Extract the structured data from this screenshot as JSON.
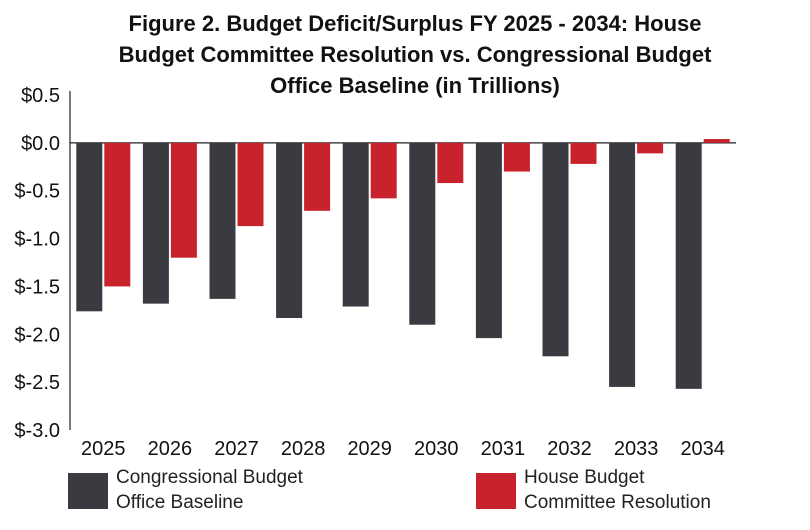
{
  "chart_data": {
    "type": "bar",
    "title_lines": [
      "Figure 2. Budget Deficit/Surplus FY 2025 - 2034: House",
      "Budget Committee Resolution vs. Congressional Budget",
      "Office Baseline (in Trillions)"
    ],
    "categories": [
      "2025",
      "2026",
      "2027",
      "2028",
      "2029",
      "2030",
      "2031",
      "2032",
      "2033",
      "2034"
    ],
    "series": [
      {
        "name": "Congressional Budget\nOffice Baseline",
        "color": "#3a3b40",
        "values": [
          -1.76,
          -1.68,
          -1.63,
          -1.83,
          -1.71,
          -1.9,
          -2.04,
          -2.23,
          -2.55,
          -2.57
        ]
      },
      {
        "name": "House Budget\nCommittee Resolution",
        "color": "#c8232c",
        "values": [
          -1.5,
          -1.2,
          -0.87,
          -0.71,
          -0.58,
          -0.42,
          -0.3,
          -0.22,
          -0.11,
          0.04
        ]
      }
    ],
    "yticks": [
      "$0.5",
      "$0.0",
      "$-0.5",
      "$-1.0",
      "$-1.5",
      "$-2.0",
      "$-2.5",
      "$-3.0"
    ],
    "ylim": [
      -3.0,
      0.5
    ],
    "ytick_values": [
      0.5,
      0.0,
      -0.5,
      -1.0,
      -1.5,
      -2.0,
      -2.5,
      -3.0
    ],
    "grid": false,
    "legend_position": "bottom"
  }
}
